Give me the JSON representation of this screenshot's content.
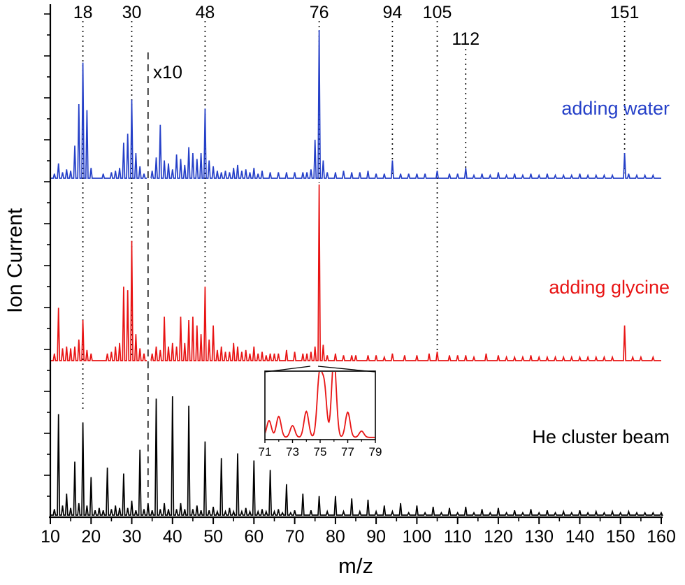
{
  "figure_kind": "mass spectra comparison",
  "chart_data": {
    "type": "line",
    "title": "",
    "xlabel": "m/z",
    "ylabel": "Ion Current",
    "xlim": [
      10,
      160
    ],
    "x_major_ticks": [
      10,
      20,
      30,
      40,
      50,
      60,
      70,
      80,
      90,
      100,
      110,
      120,
      130,
      140,
      150,
      160
    ],
    "x_minor_step": 5,
    "grid": false,
    "legend_position": "right-of-each-trace",
    "scale_break": {
      "mz": 34,
      "label": "x10"
    },
    "guides": [
      {
        "mz": 18,
        "label": "18"
      },
      {
        "mz": 30,
        "label": "30"
      },
      {
        "mz": 48,
        "label": "48"
      },
      {
        "mz": 76,
        "label": "76"
      },
      {
        "mz": 94,
        "label": "94"
      },
      {
        "mz": 105,
        "label": "105"
      },
      {
        "mz": 112,
        "label": "112"
      },
      {
        "mz": 151,
        "label": "151"
      }
    ],
    "series": [
      {
        "name": "adding water",
        "color": "#2540c8",
        "peaks": [
          [
            11,
            0.03
          ],
          [
            12,
            0.1
          ],
          [
            13,
            0.04
          ],
          [
            14,
            0.06
          ],
          [
            15,
            0.05
          ],
          [
            16,
            0.22
          ],
          [
            17,
            0.5
          ],
          [
            18,
            0.78
          ],
          [
            19,
            0.46
          ],
          [
            20,
            0.07
          ],
          [
            23,
            0.03
          ],
          [
            25,
            0.04
          ],
          [
            26,
            0.05
          ],
          [
            27,
            0.07
          ],
          [
            28,
            0.24
          ],
          [
            29,
            0.3
          ],
          [
            30,
            0.53
          ],
          [
            31,
            0.17
          ],
          [
            32,
            0.08
          ],
          [
            33,
            0.03
          ],
          [
            35,
            0.05
          ],
          [
            36,
            0.14
          ],
          [
            37,
            0.36
          ],
          [
            38,
            0.12
          ],
          [
            39,
            0.1
          ],
          [
            40,
            0.06
          ],
          [
            41,
            0.16
          ],
          [
            42,
            0.13
          ],
          [
            43,
            0.09
          ],
          [
            44,
            0.21
          ],
          [
            45,
            0.17
          ],
          [
            46,
            0.13
          ],
          [
            47,
            0.17
          ],
          [
            48,
            0.47
          ],
          [
            49,
            0.12
          ],
          [
            50,
            0.08
          ],
          [
            51,
            0.05
          ],
          [
            52,
            0.04
          ],
          [
            53,
            0.05
          ],
          [
            54,
            0.04
          ],
          [
            55,
            0.07
          ],
          [
            56,
            0.09
          ],
          [
            57,
            0.05
          ],
          [
            58,
            0.06
          ],
          [
            59,
            0.04
          ],
          [
            60,
            0.07
          ],
          [
            61,
            0.03
          ],
          [
            62,
            0.05
          ],
          [
            64,
            0.04
          ],
          [
            66,
            0.04
          ],
          [
            68,
            0.04
          ],
          [
            70,
            0.04
          ],
          [
            72,
            0.04
          ],
          [
            73,
            0.04
          ],
          [
            74,
            0.06
          ],
          [
            75,
            0.26
          ],
          [
            76,
            1.0
          ],
          [
            77,
            0.12
          ],
          [
            78,
            0.04
          ],
          [
            80,
            0.04
          ],
          [
            82,
            0.05
          ],
          [
            84,
            0.04
          ],
          [
            86,
            0.04
          ],
          [
            88,
            0.05
          ],
          [
            90,
            0.03
          ],
          [
            92,
            0.03
          ],
          [
            94,
            0.12
          ],
          [
            96,
            0.03
          ],
          [
            98,
            0.03
          ],
          [
            100,
            0.03
          ],
          [
            102,
            0.03
          ],
          [
            105,
            0.05
          ],
          [
            108,
            0.03
          ],
          [
            110,
            0.03
          ],
          [
            112,
            0.07
          ],
          [
            114,
            0.02
          ],
          [
            116,
            0.03
          ],
          [
            118,
            0.02
          ],
          [
            120,
            0.04
          ],
          [
            122,
            0.02
          ],
          [
            124,
            0.03
          ],
          [
            126,
            0.02
          ],
          [
            128,
            0.03
          ],
          [
            130,
            0.02
          ],
          [
            132,
            0.03
          ],
          [
            134,
            0.02
          ],
          [
            136,
            0.02
          ],
          [
            138,
            0.02
          ],
          [
            140,
            0.03
          ],
          [
            142,
            0.02
          ],
          [
            144,
            0.02
          ],
          [
            146,
            0.02
          ],
          [
            148,
            0.02
          ],
          [
            151,
            0.17
          ],
          [
            152,
            0.03
          ],
          [
            154,
            0.02
          ],
          [
            156,
            0.02
          ],
          [
            158,
            0.02
          ]
        ]
      },
      {
        "name": "adding glycine",
        "color": "#e81414",
        "peaks": [
          [
            11,
            0.04
          ],
          [
            12,
            0.3
          ],
          [
            13,
            0.07
          ],
          [
            14,
            0.08
          ],
          [
            15,
            0.07
          ],
          [
            16,
            0.08
          ],
          [
            17,
            0.12
          ],
          [
            18,
            0.23
          ],
          [
            19,
            0.06
          ],
          [
            20,
            0.04
          ],
          [
            24,
            0.04
          ],
          [
            25,
            0.05
          ],
          [
            26,
            0.08
          ],
          [
            27,
            0.1
          ],
          [
            28,
            0.42
          ],
          [
            29,
            0.4
          ],
          [
            30,
            0.68
          ],
          [
            31,
            0.15
          ],
          [
            32,
            0.07
          ],
          [
            33,
            0.04
          ],
          [
            35,
            0.04
          ],
          [
            36,
            0.08
          ],
          [
            37,
            0.06
          ],
          [
            38,
            0.25
          ],
          [
            39,
            0.08
          ],
          [
            40,
            0.1
          ],
          [
            41,
            0.08
          ],
          [
            42,
            0.25
          ],
          [
            43,
            0.1
          ],
          [
            44,
            0.23
          ],
          [
            45,
            0.25
          ],
          [
            46,
            0.2
          ],
          [
            47,
            0.15
          ],
          [
            48,
            0.42
          ],
          [
            49,
            0.12
          ],
          [
            50,
            0.2
          ],
          [
            51,
            0.06
          ],
          [
            52,
            0.08
          ],
          [
            53,
            0.05
          ],
          [
            54,
            0.05
          ],
          [
            55,
            0.1
          ],
          [
            56,
            0.08
          ],
          [
            57,
            0.05
          ],
          [
            58,
            0.06
          ],
          [
            59,
            0.04
          ],
          [
            60,
            0.08
          ],
          [
            61,
            0.04
          ],
          [
            62,
            0.05
          ],
          [
            63,
            0.03
          ],
          [
            64,
            0.04
          ],
          [
            65,
            0.04
          ],
          [
            66,
            0.04
          ],
          [
            68,
            0.06
          ],
          [
            70,
            0.05
          ],
          [
            72,
            0.04
          ],
          [
            73,
            0.04
          ],
          [
            74,
            0.05
          ],
          [
            75,
            0.08
          ],
          [
            76,
            1.0
          ],
          [
            77,
            0.09
          ],
          [
            78,
            0.03
          ],
          [
            80,
            0.04
          ],
          [
            82,
            0.03
          ],
          [
            84,
            0.03
          ],
          [
            85,
            0.03
          ],
          [
            88,
            0.03
          ],
          [
            90,
            0.03
          ],
          [
            92,
            0.02
          ],
          [
            94,
            0.04
          ],
          [
            97,
            0.03
          ],
          [
            100,
            0.03
          ],
          [
            103,
            0.04
          ],
          [
            105,
            0.05
          ],
          [
            108,
            0.03
          ],
          [
            110,
            0.03
          ],
          [
            112,
            0.03
          ],
          [
            114,
            0.02
          ],
          [
            117,
            0.04
          ],
          [
            120,
            0.03
          ],
          [
            122,
            0.02
          ],
          [
            124,
            0.02
          ],
          [
            126,
            0.02
          ],
          [
            128,
            0.03
          ],
          [
            130,
            0.02
          ],
          [
            132,
            0.02
          ],
          [
            134,
            0.02
          ],
          [
            136,
            0.02
          ],
          [
            138,
            0.02
          ],
          [
            140,
            0.02
          ],
          [
            142,
            0.02
          ],
          [
            144,
            0.02
          ],
          [
            146,
            0.02
          ],
          [
            148,
            0.02
          ],
          [
            151,
            0.2
          ],
          [
            153,
            0.02
          ],
          [
            155,
            0.02
          ],
          [
            158,
            0.02
          ]
        ]
      },
      {
        "name": "He cluster beam",
        "color": "#000000",
        "peaks": [
          [
            11,
            0.05
          ],
          [
            12,
            0.85
          ],
          [
            13,
            0.08
          ],
          [
            14,
            0.18
          ],
          [
            15,
            0.06
          ],
          [
            16,
            0.45
          ],
          [
            17,
            0.1
          ],
          [
            18,
            0.78
          ],
          [
            19,
            0.08
          ],
          [
            20,
            0.32
          ],
          [
            21,
            0.04
          ],
          [
            22,
            0.06
          ],
          [
            23,
            0.04
          ],
          [
            24,
            0.4
          ],
          [
            25,
            0.05
          ],
          [
            26,
            0.08
          ],
          [
            27,
            0.06
          ],
          [
            28,
            0.35
          ],
          [
            29,
            0.06
          ],
          [
            30,
            0.12
          ],
          [
            31,
            0.04
          ],
          [
            32,
            0.55
          ],
          [
            33,
            0.05
          ],
          [
            34,
            0.1
          ],
          [
            35,
            0.04
          ],
          [
            36,
            0.98
          ],
          [
            37,
            0.05
          ],
          [
            38,
            0.1
          ],
          [
            39,
            0.05
          ],
          [
            40,
            1.0
          ],
          [
            41,
            0.05
          ],
          [
            42,
            0.1
          ],
          [
            43,
            0.05
          ],
          [
            44,
            0.92
          ],
          [
            45,
            0.05
          ],
          [
            46,
            0.08
          ],
          [
            47,
            0.04
          ],
          [
            48,
            0.62
          ],
          [
            49,
            0.04
          ],
          [
            50,
            0.07
          ],
          [
            51,
            0.03
          ],
          [
            52,
            0.48
          ],
          [
            53,
            0.03
          ],
          [
            54,
            0.06
          ],
          [
            55,
            0.03
          ],
          [
            56,
            0.52
          ],
          [
            57,
            0.03
          ],
          [
            58,
            0.06
          ],
          [
            59,
            0.03
          ],
          [
            60,
            0.46
          ],
          [
            61,
            0.03
          ],
          [
            62,
            0.05
          ],
          [
            63,
            0.03
          ],
          [
            64,
            0.38
          ],
          [
            65,
            0.03
          ],
          [
            66,
            0.05
          ],
          [
            67,
            0.02
          ],
          [
            68,
            0.26
          ],
          [
            69,
            0.02
          ],
          [
            70,
            0.04
          ],
          [
            72,
            0.18
          ],
          [
            74,
            0.04
          ],
          [
            76,
            0.16
          ],
          [
            78,
            0.03
          ],
          [
            80,
            0.16
          ],
          [
            82,
            0.03
          ],
          [
            84,
            0.14
          ],
          [
            86,
            0.03
          ],
          [
            88,
            0.13
          ],
          [
            90,
            0.03
          ],
          [
            92,
            0.08
          ],
          [
            94,
            0.03
          ],
          [
            96,
            0.1
          ],
          [
            98,
            0.02
          ],
          [
            100,
            0.08
          ],
          [
            102,
            0.02
          ],
          [
            104,
            0.07
          ],
          [
            106,
            0.02
          ],
          [
            108,
            0.06
          ],
          [
            110,
            0.02
          ],
          [
            112,
            0.07
          ],
          [
            114,
            0.02
          ],
          [
            116,
            0.05
          ],
          [
            118,
            0.02
          ],
          [
            120,
            0.06
          ],
          [
            122,
            0.02
          ],
          [
            124,
            0.04
          ],
          [
            126,
            0.02
          ],
          [
            128,
            0.05
          ],
          [
            130,
            0.02
          ],
          [
            132,
            0.04
          ],
          [
            134,
            0.02
          ],
          [
            136,
            0.03
          ],
          [
            138,
            0.02
          ],
          [
            140,
            0.04
          ],
          [
            142,
            0.02
          ],
          [
            144,
            0.03
          ],
          [
            146,
            0.02
          ],
          [
            148,
            0.03
          ],
          [
            150,
            0.02
          ],
          [
            152,
            0.03
          ],
          [
            154,
            0.02
          ],
          [
            156,
            0.02
          ],
          [
            158,
            0.02
          ],
          [
            160,
            0.02
          ]
        ]
      }
    ],
    "inset": {
      "series": "adding glycine",
      "color": "#e81414",
      "xlim": [
        71,
        79
      ],
      "ticks": [
        71,
        73,
        75,
        77,
        79
      ],
      "peaks": [
        [
          71.3,
          0.4
        ],
        [
          72,
          0.5
        ],
        [
          73,
          0.28
        ],
        [
          74,
          0.62
        ],
        [
          74.95,
          1.45
        ],
        [
          75.3,
          1.2
        ],
        [
          76,
          1.9
        ],
        [
          77,
          0.6
        ],
        [
          78,
          0.15
        ]
      ]
    }
  }
}
